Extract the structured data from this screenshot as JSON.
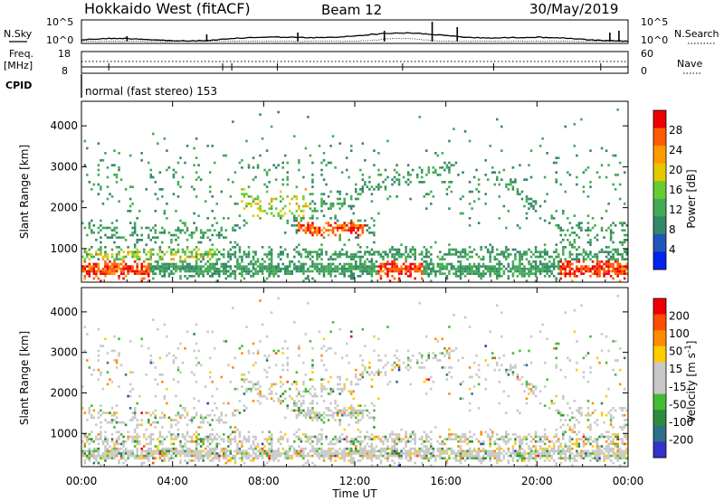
{
  "header": {
    "title": "Hokkaido West (fitACF)",
    "beam": "Beam 12",
    "date": "30/May/2019"
  },
  "panels": {
    "nsky_label": "N.Sky",
    "nsky_axis_top": "10^5",
    "nsky_axis_bottom": "10^0",
    "nsearch_label": "N.Search",
    "nsearch_axis_top": "10^5",
    "nsearch_axis_bottom": "10^0",
    "freq_label_1": "Freq.",
    "freq_label_2": "[MHz]",
    "freq_axis_top": "18",
    "freq_axis_bottom": "8",
    "nave_label": "Nave",
    "nave_axis_top": "60",
    "nave_axis_bottom": "0",
    "cpid_label": "CPID",
    "cpid_text": "normal (fast stereo) 153"
  },
  "colors": {
    "power": [
      "#0022ee",
      "#2255bb",
      "#338866",
      "#44aa55",
      "#66cc33",
      "#e6c800",
      "#ff9900",
      "#ff5a00",
      "#ee0000"
    ],
    "velocity": [
      "#3333cc",
      "#2e6f8a",
      "#2e8a3c",
      "#44bb33",
      "#c8c8c8",
      "#c8c8c8",
      "#ffcc00",
      "#ff8c00",
      "#ff4d00",
      "#ee0000"
    ]
  },
  "chart_data": [
    {
      "type": "heatmap",
      "name": "power",
      "ylabel": "Slant Range [km]",
      "yticks": [
        "4000",
        "3000",
        "2000",
        "1000"
      ],
      "ylim": [
        180,
        4600
      ],
      "xlim": [
        0,
        24
      ],
      "colorbar_label": "Power [dB]",
      "colorbar_ticks": [
        "28",
        "24",
        "20",
        "16",
        "12",
        "8",
        "4"
      ],
      "colorbar_range": [
        0,
        32
      ]
    },
    {
      "type": "heatmap",
      "name": "velocity",
      "ylabel": "Slant Range [km]",
      "yticks": [
        "4000",
        "3000",
        "2000",
        "1000"
      ],
      "ylim": [
        180,
        4600
      ],
      "xlim": [
        0,
        24
      ],
      "colorbar_label": "Velocity [m s^-1]",
      "colorbar_ticks": [
        "200",
        "100",
        "50",
        "15",
        "-15",
        "-50",
        "-100",
        "-200"
      ]
    }
  ],
  "xaxis": {
    "ticks": [
      "00:00",
      "04:00",
      "08:00",
      "12:00",
      "16:00",
      "20:00",
      "00:00"
    ],
    "label": "Time UT"
  }
}
